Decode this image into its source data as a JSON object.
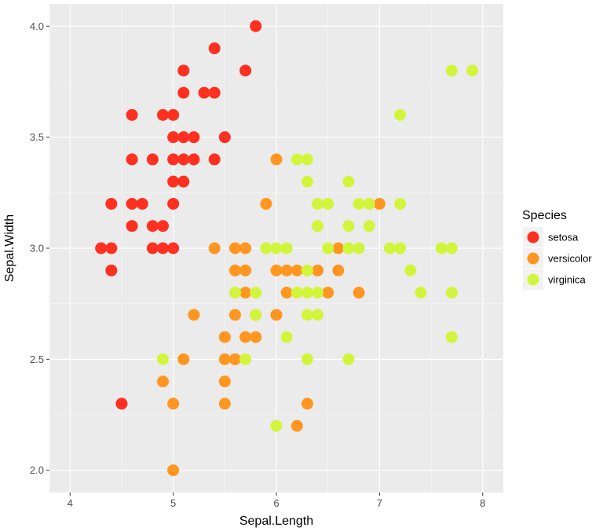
{
  "chart_data": {
    "type": "scatter",
    "xlabel": "Sepal.Length",
    "ylabel": "Sepal.Width",
    "xlim": [
      3.8,
      8.2
    ],
    "ylim": [
      1.9,
      4.1
    ],
    "x_ticks": [
      4,
      5,
      6,
      7,
      8
    ],
    "x_tick_labels": [
      "4",
      "5",
      "6",
      "7",
      "8"
    ],
    "y_ticks": [
      2.0,
      2.5,
      3.0,
      3.5,
      4.0
    ],
    "y_tick_labels": [
      "2.0",
      "2.5",
      "3.0",
      "3.5",
      "4.0"
    ],
    "grid": true,
    "legend": {
      "title": "Species",
      "position": "right"
    },
    "series": [
      {
        "name": "setosa",
        "color": "#FF3020",
        "points": [
          [
            5.8,
            4.0
          ],
          [
            5.4,
            3.9
          ],
          [
            5.1,
            3.8
          ],
          [
            5.7,
            3.8
          ],
          [
            5.1,
            3.7
          ],
          [
            5.3,
            3.7
          ],
          [
            5.4,
            3.7
          ],
          [
            4.6,
            3.6
          ],
          [
            4.9,
            3.6
          ],
          [
            5.0,
            3.6
          ],
          [
            5.0,
            3.5
          ],
          [
            5.1,
            3.5
          ],
          [
            5.2,
            3.5
          ],
          [
            5.5,
            3.5
          ],
          [
            4.6,
            3.4
          ],
          [
            4.8,
            3.4
          ],
          [
            5.0,
            3.4
          ],
          [
            5.1,
            3.4
          ],
          [
            5.2,
            3.4
          ],
          [
            5.4,
            3.4
          ],
          [
            5.0,
            3.3
          ],
          [
            5.1,
            3.3
          ],
          [
            4.4,
            3.2
          ],
          [
            4.6,
            3.2
          ],
          [
            4.7,
            3.2
          ],
          [
            5.0,
            3.2
          ],
          [
            4.6,
            3.1
          ],
          [
            4.8,
            3.1
          ],
          [
            4.9,
            3.1
          ],
          [
            4.3,
            3.0
          ],
          [
            4.4,
            3.0
          ],
          [
            4.8,
            3.0
          ],
          [
            4.9,
            3.0
          ],
          [
            5.0,
            3.0
          ],
          [
            4.4,
            2.9
          ],
          [
            4.5,
            2.3
          ]
        ]
      },
      {
        "name": "versicolor",
        "color": "#FF9620",
        "points": [
          [
            6.0,
            3.4
          ],
          [
            5.9,
            3.2
          ],
          [
            7.0,
            3.2
          ],
          [
            5.4,
            3.0
          ],
          [
            5.6,
            3.0
          ],
          [
            5.7,
            3.0
          ],
          [
            6.6,
            3.0
          ],
          [
            5.6,
            2.9
          ],
          [
            5.7,
            2.9
          ],
          [
            6.0,
            2.9
          ],
          [
            6.1,
            2.9
          ],
          [
            6.2,
            2.9
          ],
          [
            6.4,
            2.9
          ],
          [
            6.6,
            2.9
          ],
          [
            5.7,
            2.8
          ],
          [
            6.1,
            2.8
          ],
          [
            6.5,
            2.8
          ],
          [
            6.8,
            2.8
          ],
          [
            5.2,
            2.7
          ],
          [
            5.6,
            2.7
          ],
          [
            5.8,
            2.7
          ],
          [
            6.0,
            2.7
          ],
          [
            5.5,
            2.6
          ],
          [
            5.7,
            2.6
          ],
          [
            5.8,
            2.6
          ],
          [
            5.1,
            2.5
          ],
          [
            5.5,
            2.5
          ],
          [
            5.6,
            2.5
          ],
          [
            4.9,
            2.4
          ],
          [
            5.5,
            2.4
          ],
          [
            5.0,
            2.3
          ],
          [
            5.5,
            2.3
          ],
          [
            6.3,
            2.3
          ],
          [
            6.2,
            2.2
          ],
          [
            5.0,
            2.0
          ]
        ]
      },
      {
        "name": "virginica",
        "color": "#D2F53C",
        "points": [
          [
            7.7,
            3.8
          ],
          [
            7.9,
            3.8
          ],
          [
            7.2,
            3.6
          ],
          [
            6.2,
            3.4
          ],
          [
            6.3,
            3.4
          ],
          [
            6.3,
            3.3
          ],
          [
            6.7,
            3.3
          ],
          [
            6.4,
            3.2
          ],
          [
            6.5,
            3.2
          ],
          [
            6.8,
            3.2
          ],
          [
            6.9,
            3.2
          ],
          [
            7.2,
            3.2
          ],
          [
            6.4,
            3.1
          ],
          [
            6.7,
            3.1
          ],
          [
            6.9,
            3.1
          ],
          [
            5.9,
            3.0
          ],
          [
            6.0,
            3.0
          ],
          [
            6.1,
            3.0
          ],
          [
            6.5,
            3.0
          ],
          [
            6.7,
            3.0
          ],
          [
            6.8,
            3.0
          ],
          [
            7.1,
            3.0
          ],
          [
            7.2,
            3.0
          ],
          [
            7.6,
            3.0
          ],
          [
            7.7,
            3.0
          ],
          [
            6.3,
            2.9
          ],
          [
            7.3,
            2.9
          ],
          [
            5.6,
            2.8
          ],
          [
            5.8,
            2.8
          ],
          [
            6.2,
            2.8
          ],
          [
            6.3,
            2.8
          ],
          [
            6.4,
            2.8
          ],
          [
            7.4,
            2.8
          ],
          [
            7.7,
            2.8
          ],
          [
            5.8,
            2.7
          ],
          [
            6.3,
            2.7
          ],
          [
            6.4,
            2.7
          ],
          [
            6.1,
            2.6
          ],
          [
            7.7,
            2.6
          ],
          [
            4.9,
            2.5
          ],
          [
            5.7,
            2.5
          ],
          [
            6.3,
            2.5
          ],
          [
            6.7,
            2.5
          ],
          [
            6.0,
            2.2
          ]
        ]
      }
    ]
  }
}
